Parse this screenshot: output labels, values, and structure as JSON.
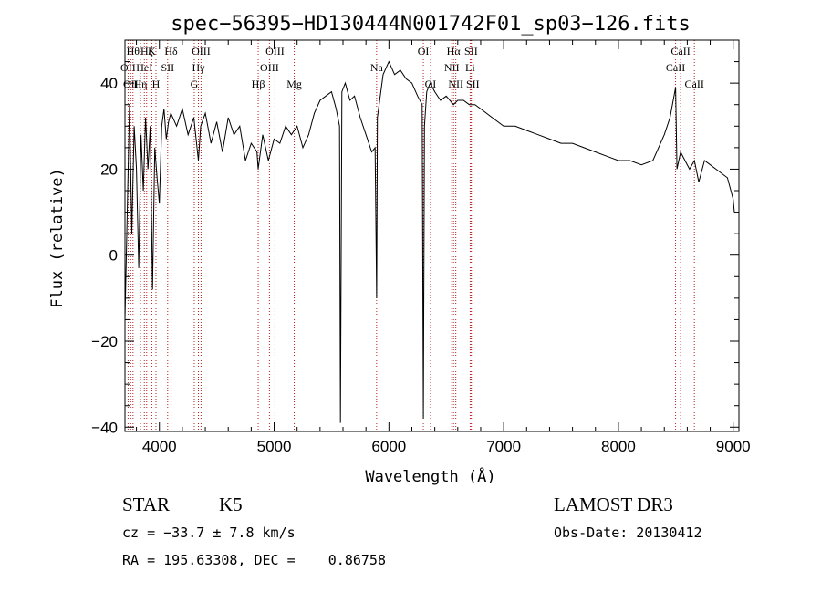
{
  "chart_data": {
    "type": "line",
    "title": "spec−56395−HD130444N001742F01_sp03−126.fits",
    "xlabel": "Wavelength (Å)",
    "ylabel": "Flux (relative)",
    "xlim": [
      3700,
      9050
    ],
    "ylim": [
      -41,
      50
    ],
    "x_ticks": [
      4000,
      5000,
      6000,
      7000,
      8000,
      9000
    ],
    "x_tick_labels": [
      "4000",
      "5000",
      "6000",
      "7000",
      "8000",
      "9000"
    ],
    "y_ticks": [
      40,
      20,
      0,
      -20,
      -40
    ],
    "y_tick_labels": [
      "40",
      "20",
      "0",
      "−20",
      "−40"
    ],
    "series": [
      {
        "color": "#000000",
        "x": [
          3700,
          3720,
          3740,
          3760,
          3780,
          3800,
          3820,
          3840,
          3860,
          3880,
          3900,
          3920,
          3940,
          3960,
          3980,
          4000,
          4020,
          4040,
          4060,
          4080,
          4100,
          4150,
          4200,
          4250,
          4300,
          4340,
          4360,
          4400,
          4450,
          4500,
          4550,
          4600,
          4650,
          4700,
          4750,
          4800,
          4850,
          4861,
          4900,
          4950,
          5000,
          5050,
          5100,
          5150,
          5200,
          5250,
          5300,
          5350,
          5400,
          5450,
          5500,
          5540,
          5570,
          5578,
          5590,
          5620,
          5660,
          5700,
          5750,
          5800,
          5850,
          5880,
          5893,
          5900,
          5950,
          6000,
          6050,
          6100,
          6150,
          6200,
          6250,
          6290,
          6300,
          6310,
          6330,
          6360,
          6400,
          6450,
          6500,
          6563,
          6600,
          6650,
          6700,
          6750,
          6800,
          6900,
          7000,
          7100,
          7200,
          7300,
          7400,
          7500,
          7600,
          7700,
          7800,
          7900,
          8000,
          8100,
          8200,
          8300,
          8400,
          8450,
          8498,
          8510,
          8542,
          8580,
          8620,
          8662,
          8700,
          8750,
          8800,
          8850,
          8900,
          8950,
          9000,
          9010
        ],
        "y": [
          -15,
          10,
          35,
          5,
          30,
          20,
          -3,
          28,
          15,
          32,
          20,
          30,
          -8,
          25,
          18,
          12,
          30,
          34,
          27,
          31,
          33,
          30,
          34,
          28,
          32,
          22,
          30,
          33,
          26,
          31,
          24,
          32,
          28,
          30,
          22,
          26,
          24,
          20,
          28,
          22,
          27,
          26,
          30,
          28,
          30,
          25,
          28,
          33,
          36,
          37,
          38,
          34,
          30,
          -39,
          38,
          40,
          36,
          37,
          32,
          28,
          24,
          25,
          -10,
          32,
          42,
          45,
          42,
          43,
          41,
          40,
          37,
          35,
          -38,
          30,
          38,
          40,
          38,
          36,
          37,
          35,
          36,
          36,
          35,
          35,
          34,
          32,
          30,
          30,
          29,
          28,
          27,
          26,
          26,
          25,
          24,
          23,
          22,
          22,
          21,
          22,
          28,
          32,
          39,
          20,
          24,
          22,
          20,
          22,
          17,
          22,
          21,
          20,
          19,
          18,
          13,
          10
        ]
      }
    ],
    "spectral_lines": [
      {
        "wl": 3727,
        "label": "OII",
        "row": 2
      },
      {
        "wl": 3750,
        "label": "OII",
        "row": 3
      },
      {
        "wl": 3770,
        "label": "Hθ",
        "row": 1
      },
      {
        "wl": 3835,
        "label": "Hη",
        "row": 3
      },
      {
        "wl": 3869,
        "label": "HeI",
        "row": 2
      },
      {
        "wl": 3889,
        "label": "Hζ",
        "row": 1
      },
      {
        "wl": 3934,
        "label": "K",
        "row": 1
      },
      {
        "wl": 3970,
        "label": "H",
        "row": 3
      },
      {
        "wl": 4072,
        "label": "SII",
        "row": 2
      },
      {
        "wl": 4102,
        "label": "Hδ",
        "row": 1
      },
      {
        "wl": 4304,
        "label": "G",
        "row": 3
      },
      {
        "wl": 4340,
        "label": "Hγ",
        "row": 2
      },
      {
        "wl": 4363,
        "label": "OIII",
        "row": 1
      },
      {
        "wl": 4861,
        "label": "Hβ",
        "row": 3
      },
      {
        "wl": 4959,
        "label": "OIII",
        "row": 2
      },
      {
        "wl": 5007,
        "label": "OIII",
        "row": 1
      },
      {
        "wl": 5175,
        "label": "Mg",
        "row": 3
      },
      {
        "wl": 5893,
        "label": "Na",
        "row": 2
      },
      {
        "wl": 6300,
        "label": "OI",
        "row": 1
      },
      {
        "wl": 6363,
        "label": "OI",
        "row": 3
      },
      {
        "wl": 6548,
        "label": "NII",
        "row": 2
      },
      {
        "wl": 6563,
        "label": "Hα",
        "row": 1
      },
      {
        "wl": 6583,
        "label": "NII",
        "row": 3
      },
      {
        "wl": 6708,
        "label": "Li",
        "row": 2
      },
      {
        "wl": 6716,
        "label": "SII",
        "row": 1
      },
      {
        "wl": 6731,
        "label": "SII",
        "row": 3
      },
      {
        "wl": 8498,
        "label": "CaII",
        "row": 2
      },
      {
        "wl": 8542,
        "label": "CaII",
        "row": 1
      },
      {
        "wl": 8662,
        "label": "CaII",
        "row": 3
      }
    ],
    "line_color": "#b22222"
  },
  "info": {
    "object_class": "STAR",
    "subclass": "K5",
    "survey": "LAMOST DR3",
    "cz": "cz = −33.7 ± 7.8 km/s",
    "obs_date": "Obs-Date: 20130412",
    "coords": "RA = 195.63308, DEC =    0.86758"
  }
}
